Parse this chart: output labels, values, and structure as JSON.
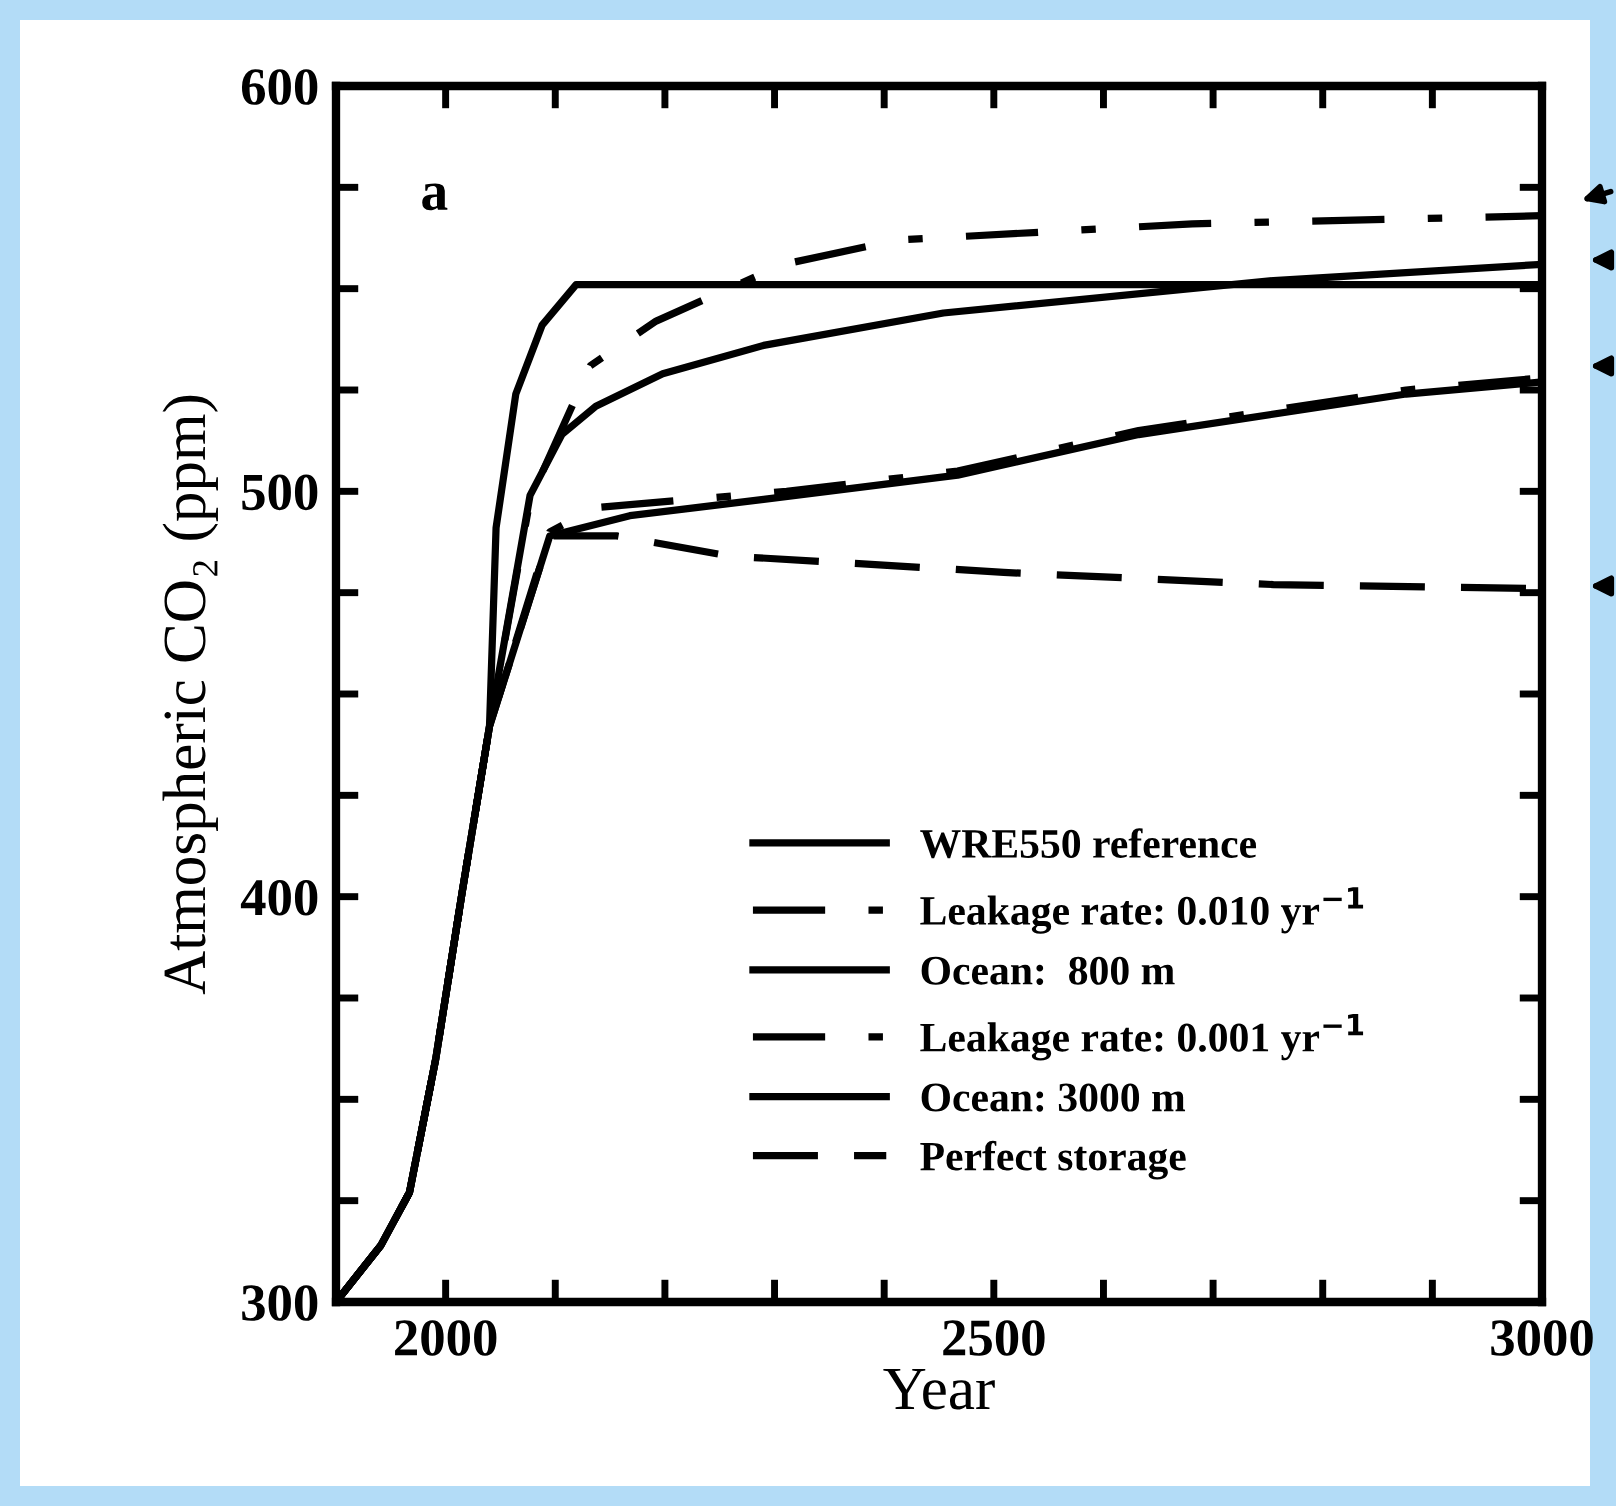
{
  "chart_data": {
    "type": "line",
    "xlabel": "Year",
    "ylabel": "Atmospheric CO₂ (ppm)",
    "annotations": [
      "a"
    ],
    "xlim": [
      1900,
      3000
    ],
    "xticks": [
      {
        "value": 1900,
        "label": null
      },
      2000,
      {
        "value": 2100,
        "label": null
      },
      {
        "value": 2200,
        "label": null
      },
      {
        "value": 2300,
        "label": null
      },
      {
        "value": 2400,
        "label": null
      },
      2500,
      {
        "value": 2600,
        "label": null
      },
      {
        "value": 2700,
        "label": null
      },
      {
        "value": 2800,
        "label": null
      },
      {
        "value": 2900,
        "label": null
      },
      3000
    ],
    "ylim": [
      300,
      600
    ],
    "yticks": [
      300,
      {
        "value": 325,
        "label": null
      },
      {
        "value": 350,
        "label": null
      },
      {
        "value": 375,
        "label": null
      },
      400,
      {
        "value": 425,
        "label": null
      },
      {
        "value": 450,
        "label": null
      },
      {
        "value": 475,
        "label": null
      },
      500,
      {
        "value": 525,
        "label": null
      },
      {
        "value": 550,
        "label": null
      },
      {
        "value": 575,
        "label": null
      },
      600
    ],
    "grid": false,
    "legend": "bottom",
    "marker": "none",
    "series": [
      {
        "name": "WRE550 reference",
        "color": "#000000",
        "line_style": "solid",
        "x": [
          1900,
          1941,
          1967,
          1991,
          2015,
          2040,
          2046,
          2064,
          2088,
          2119,
          2137,
          2500,
          3000
        ],
        "values": [
          300,
          314,
          327,
          360,
          401,
          442,
          491,
          524,
          541,
          551,
          551,
          551,
          551
        ]
      },
      {
        "name": "Leakage rate: 0.010 yr$^{−1}$",
        "color": "#000000",
        "line_style": "dashdot",
        "x": [
          1900,
          1941,
          1967,
          1991,
          2015,
          2040,
          2077,
          2132,
          2192,
          2308,
          2412,
          2681,
          3000
        ],
        "values": [
          300,
          314,
          327,
          360,
          401,
          442,
          498,
          531,
          542,
          556,
          562,
          566,
          568
        ]
      },
      {
        "name": "Ocean:  800 m",
        "color": "#000000",
        "line_style": "solid",
        "x": [
          1900,
          1941,
          1967,
          1991,
          2015,
          2040,
          2077,
          2106,
          2137,
          2198,
          2290,
          2454,
          2755,
          3000
        ],
        "values": [
          300,
          314,
          327,
          360,
          401,
          442,
          499,
          514,
          521,
          529,
          536,
          544,
          552,
          556
        ]
      },
      {
        "name": "Leakage rate: 0.001 yr$^{−1}$",
        "color": "#000000",
        "line_style": "dashdot",
        "x": [
          1900,
          1941,
          1967,
          1991,
          2015,
          2040,
          2095,
          2137,
          2311,
          2467,
          2632,
          2876,
          3000
        ],
        "values": [
          300,
          314,
          327,
          360,
          401,
          442,
          490,
          496,
          500,
          505,
          515,
          525,
          528
        ]
      },
      {
        "name": "Ocean: 3000 m",
        "color": "#000000",
        "line_style": "solid",
        "x": [
          1900,
          1941,
          1967,
          1991,
          2015,
          2040,
          2095,
          2168,
          2290,
          2467,
          2632,
          2876,
          3000
        ],
        "values": [
          300,
          314,
          327,
          360,
          401,
          442,
          489,
          494,
          498,
          504,
          514,
          524,
          527
        ]
      },
      {
        "name": "Perfect storage",
        "color": "#000000",
        "line_style": "dashed",
        "x": [
          1900,
          1941,
          1967,
          1991,
          2015,
          2040,
          2095,
          2156,
          2260,
          2388,
          2509,
          2755,
          3000
        ],
        "values": [
          300,
          314,
          327,
          360,
          401,
          442,
          489,
          489,
          484,
          482,
          480,
          477,
          476
        ]
      }
    ]
  }
}
